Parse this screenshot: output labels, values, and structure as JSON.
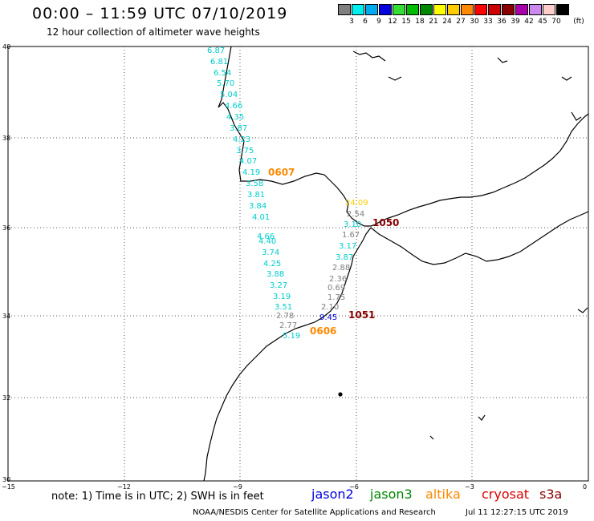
{
  "header": {
    "title": "00:00 – 11:59 UTC 07/10/2019",
    "subtitle": "12 hour collection of altimeter wave heights"
  },
  "legend": {
    "unit": "(ft)",
    "bins": [
      {
        "label": "3",
        "color": "#7f7f7f"
      },
      {
        "label": "6",
        "color": "#00eeee"
      },
      {
        "label": "9",
        "color": "#00aaee"
      },
      {
        "label": "12",
        "color": "#0000dd"
      },
      {
        "label": "15",
        "color": "#33dd33"
      },
      {
        "label": "18",
        "color": "#00bb00"
      },
      {
        "label": "21",
        "color": "#008800"
      },
      {
        "label": "24",
        "color": "#ffff00"
      },
      {
        "label": "27",
        "color": "#ffcc00"
      },
      {
        "label": "30",
        "color": "#ff8800"
      },
      {
        "label": "33",
        "color": "#ff0000"
      },
      {
        "label": "36",
        "color": "#cc0000"
      },
      {
        "label": "39",
        "color": "#880000"
      },
      {
        "label": "42",
        "color": "#aa00aa"
      },
      {
        "label": "45",
        "color": "#cc88ee"
      },
      {
        "label": "70",
        "color": "#ffcccc"
      },
      {
        "label": "",
        "color": "#000000"
      }
    ]
  },
  "axes": {
    "lat_labels": [
      "40",
      "38",
      "36",
      "34",
      "32",
      "30"
    ],
    "lon_labels": [
      "−15",
      "−12",
      "−9",
      "−6",
      "−3",
      "0"
    ]
  },
  "passes": [
    {
      "label": "0607",
      "color": "#ff8800"
    },
    {
      "label": "0606",
      "color": "#ff8800"
    },
    {
      "label": "1050",
      "color": "#880000"
    },
    {
      "label": "1051",
      "color": "#880000"
    }
  ],
  "track_west": [
    {
      "v": "6.87",
      "c": "#00cccc"
    },
    {
      "v": "6.81",
      "c": "#00cccc"
    },
    {
      "v": "6.54",
      "c": "#00cccc"
    },
    {
      "v": "5.70",
      "c": "#00cccc"
    },
    {
      "v": "5.04",
      "c": "#00cccc"
    },
    {
      "v": "4.66",
      "c": "#00cccc"
    },
    {
      "v": "4.35",
      "c": "#00cccc"
    },
    {
      "v": "3.87",
      "c": "#00cccc"
    },
    {
      "v": "4.23",
      "c": "#00cccc"
    },
    {
      "v": "3.75",
      "c": "#00cccc"
    },
    {
      "v": "4.07",
      "c": "#00cccc"
    },
    {
      "v": "4.19",
      "c": "#00cccc"
    },
    {
      "v": "3.58",
      "c": "#00cccc"
    },
    {
      "v": "3.81",
      "c": "#00cccc"
    },
    {
      "v": "3.84",
      "c": "#00cccc"
    },
    {
      "v": "4.01",
      "c": "#00cccc"
    },
    {
      "v": "4.66",
      "c": "#00cccc"
    },
    {
      "v": "4.40",
      "c": "#00cccc"
    },
    {
      "v": "3.74",
      "c": "#00cccc"
    },
    {
      "v": "4.25",
      "c": "#00cccc"
    },
    {
      "v": "3.88",
      "c": "#00cccc"
    },
    {
      "v": "3.27",
      "c": "#00cccc"
    },
    {
      "v": "3.19",
      "c": "#00cccc"
    },
    {
      "v": "3.51",
      "c": "#00cccc"
    },
    {
      "v": "2.78",
      "c": "#7f7f7f"
    },
    {
      "v": "2.77",
      "c": "#7f7f7f"
    },
    {
      "v": "5.19",
      "c": "#00cccc"
    }
  ],
  "track_east": [
    {
      "v": "24.09",
      "c": "#ffcc00"
    },
    {
      "v": "2.54",
      "c": "#7f7f7f"
    },
    {
      "v": "3.10",
      "c": "#00cccc"
    },
    {
      "v": "1.67",
      "c": "#7f7f7f"
    },
    {
      "v": "3.17",
      "c": "#00cccc"
    },
    {
      "v": "3.87",
      "c": "#00cccc"
    },
    {
      "v": "2.88",
      "c": "#7f7f7f"
    },
    {
      "v": "2.36",
      "c": "#7f7f7f"
    },
    {
      "v": "0.69",
      "c": "#7f7f7f"
    },
    {
      "v": "1.75",
      "c": "#7f7f7f"
    },
    {
      "v": "2.10",
      "c": "#7f7f7f"
    },
    {
      "v": "9.45",
      "c": "#0000dd"
    }
  ],
  "footer": {
    "note": "note:  1) Time is in UTC;  2) SWH is in feet",
    "sat_jason2": "jason2",
    "sat_jason3": "jason3",
    "sat_altika": "altika",
    "sat_cryosat": "cryosat",
    "sat_s3a": "s3a",
    "sat_colors": {
      "jason2": "#0000dd",
      "jason3": "#008800",
      "altika": "#ff8800",
      "cryosat": "#dd0000",
      "s3a": "#880000"
    },
    "credit": "NOAA/NESDIS Center for Satellite Applications and Research",
    "timestamp": "Jul 11 12:27:15 UTC 2019"
  }
}
